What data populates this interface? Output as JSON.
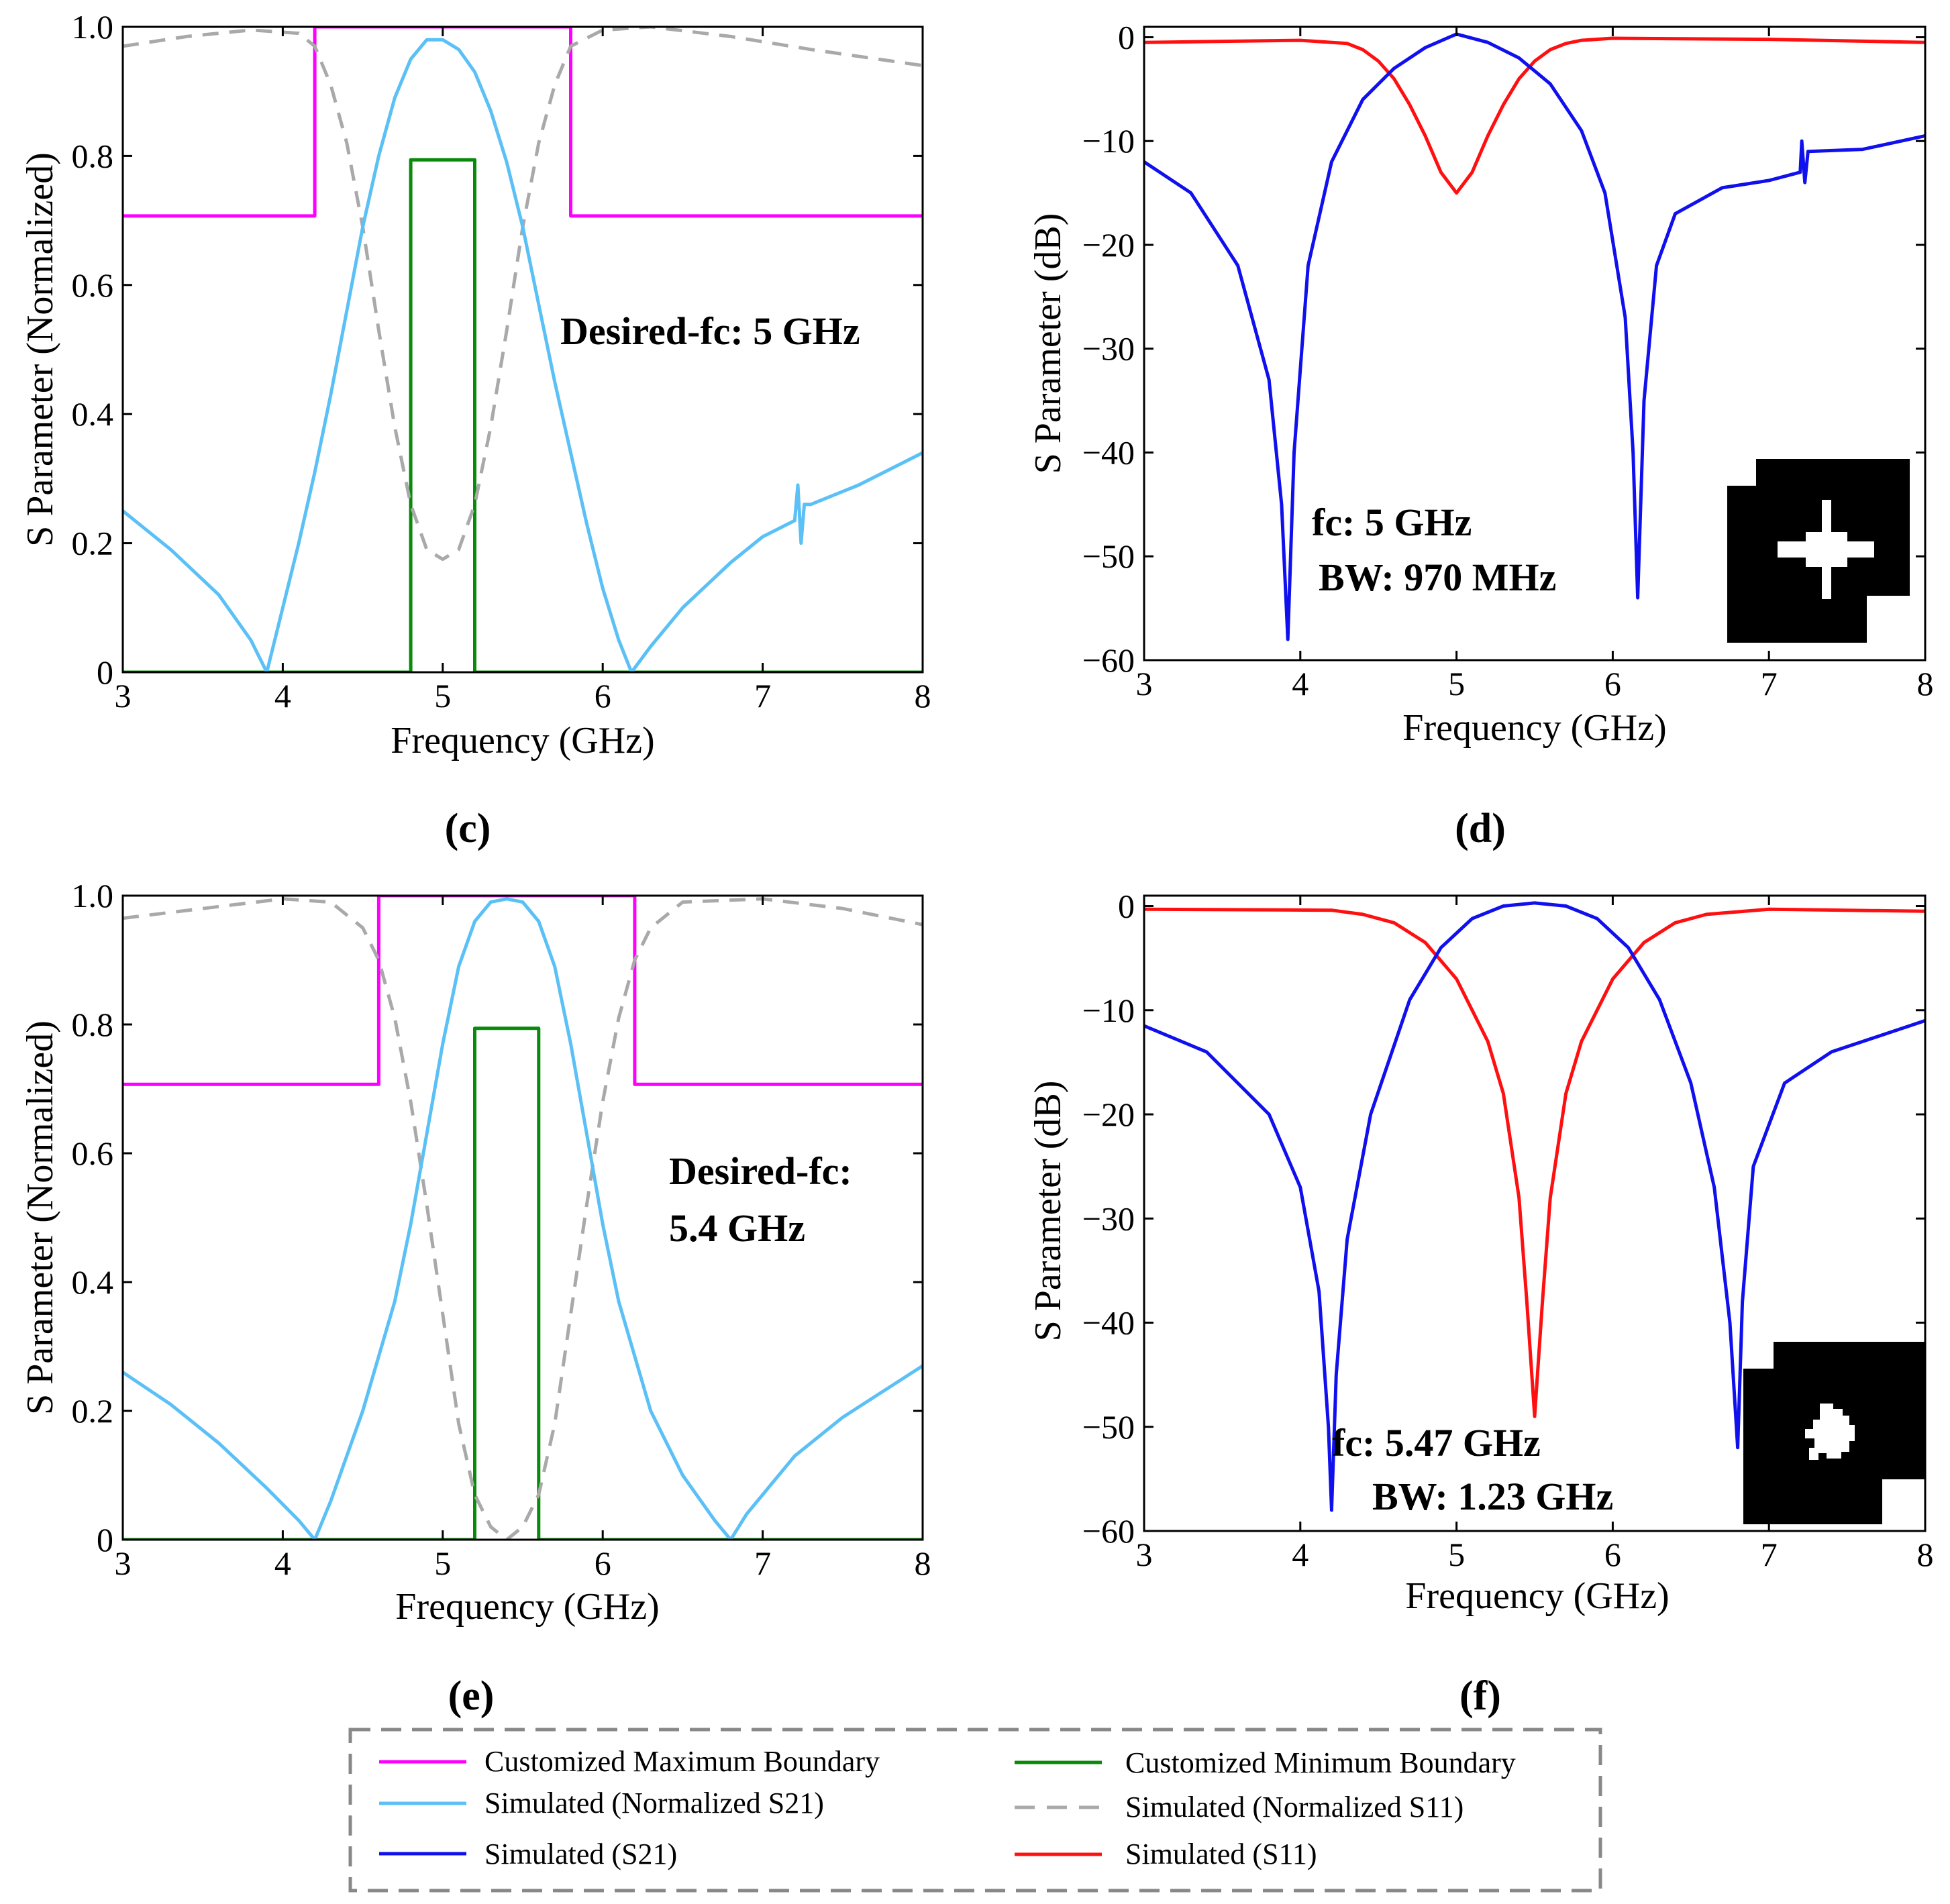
{
  "colors": {
    "max_boundary": "#ff00ff",
    "min_boundary": "#0a8a0a",
    "norm_s21": "#5bc0f5",
    "norm_s11": "#a9a9a9",
    "s21": "#1010ee",
    "s11": "#ff1010"
  },
  "legend": {
    "max_boundary": "Customized Maximum Boundary",
    "min_boundary": "Customized Minimum Boundary",
    "norm_s21": "Simulated (Normalized S21)",
    "norm_s11": "Simulated (Normalized S11)",
    "s21": "Simulated (S21)",
    "s11": "Simulated (S11)"
  },
  "chart_data": [
    {
      "panel": "(c)",
      "type": "line",
      "xlabel": "Frequency (GHz)",
      "ylabel": "S Parameter (Normalized)",
      "xlim": [
        3,
        8
      ],
      "ylim": [
        0,
        1
      ],
      "xticks": [
        3,
        4,
        5,
        6,
        7,
        8
      ],
      "yticks": [
        0,
        0.2,
        0.4,
        0.6,
        0.8,
        1.0
      ],
      "ytick_labels": [
        "0",
        "0.2",
        "0.4",
        "0.6",
        "0.8",
        "1.0"
      ],
      "annotation": [
        "Desired-fc: 5 GHz"
      ],
      "series": [
        {
          "name": "Customized Maximum Boundary",
          "key": "max_boundary",
          "style": "solid",
          "x": [
            3,
            4.2,
            4.2,
            5.8,
            5.8,
            8
          ],
          "y": [
            0.707,
            0.707,
            1.0,
            1.0,
            0.707,
            0.707
          ]
        },
        {
          "name": "Customized Minimum Boundary",
          "key": "min_boundary",
          "style": "solid",
          "x": [
            3,
            4.8,
            4.8,
            5.2,
            5.2,
            8
          ],
          "y": [
            0,
            0,
            0.794,
            0.794,
            0,
            0
          ]
        },
        {
          "name": "Simulated (Normalized S11)",
          "key": "norm_s11",
          "style": "dashed",
          "x": [
            3,
            3.4,
            3.8,
            4.1,
            4.2,
            4.3,
            4.4,
            4.5,
            4.6,
            4.7,
            4.8,
            4.9,
            5.0,
            5.1,
            5.2,
            5.3,
            5.4,
            5.5,
            5.6,
            5.7,
            5.8,
            6.0,
            6.3,
            6.8,
            7.3,
            8.0
          ],
          "y": [
            0.97,
            0.985,
            0.995,
            0.99,
            0.97,
            0.91,
            0.82,
            0.69,
            0.53,
            0.38,
            0.26,
            0.19,
            0.175,
            0.19,
            0.26,
            0.38,
            0.53,
            0.69,
            0.82,
            0.91,
            0.97,
            0.995,
            1.0,
            0.985,
            0.965,
            0.94
          ]
        },
        {
          "name": "Simulated (Normalized S21)",
          "key": "norm_s21",
          "style": "solid",
          "x": [
            3,
            3.3,
            3.6,
            3.8,
            3.9,
            4.0,
            4.1,
            4.2,
            4.3,
            4.4,
            4.5,
            4.6,
            4.7,
            4.8,
            4.9,
            5.0,
            5.1,
            5.2,
            5.3,
            5.4,
            5.5,
            5.6,
            5.7,
            5.8,
            5.9,
            6.0,
            6.1,
            6.18,
            6.3,
            6.5,
            6.8,
            7.0,
            7.2,
            7.22,
            7.24,
            7.26,
            7.3,
            7.6,
            8.0
          ],
          "y": [
            0.25,
            0.19,
            0.12,
            0.05,
            0.0,
            0.1,
            0.2,
            0.31,
            0.43,
            0.56,
            0.69,
            0.8,
            0.89,
            0.95,
            0.98,
            0.98,
            0.965,
            0.93,
            0.87,
            0.79,
            0.69,
            0.57,
            0.45,
            0.34,
            0.23,
            0.13,
            0.05,
            0.0,
            0.04,
            0.1,
            0.17,
            0.21,
            0.235,
            0.29,
            0.2,
            0.26,
            0.26,
            0.29,
            0.34
          ]
        }
      ]
    },
    {
      "panel": "(d)",
      "type": "line",
      "xlabel": "Frequency (GHz)",
      "ylabel": "S Parameter (dB)",
      "xlim": [
        3,
        8
      ],
      "ylim": [
        -60,
        1
      ],
      "xticks": [
        3,
        4,
        5,
        6,
        7,
        8
      ],
      "yticks": [
        0,
        -10,
        -20,
        -30,
        -40,
        -50,
        -60
      ],
      "ytick_labels": [
        "0",
        "−10",
        "−20",
        "−30",
        "−40",
        "−50",
        "−60"
      ],
      "annotation": [
        "fc: 5 GHz",
        "BW: 970 MHz"
      ],
      "inset": "pixel-layout-1",
      "series": [
        {
          "name": "Simulated (S11)",
          "key": "s11",
          "style": "solid",
          "x": [
            3,
            4.0,
            4.3,
            4.4,
            4.5,
            4.6,
            4.7,
            4.8,
            4.9,
            5.0,
            5.1,
            5.2,
            5.3,
            5.4,
            5.5,
            5.6,
            5.7,
            5.8,
            6.0,
            7.0,
            8.0
          ],
          "y": [
            -0.5,
            -0.3,
            -0.6,
            -1.2,
            -2.3,
            -4.0,
            -6.5,
            -9.5,
            -13.0,
            -15.0,
            -13.0,
            -9.5,
            -6.5,
            -4.0,
            -2.3,
            -1.2,
            -0.6,
            -0.3,
            -0.1,
            -0.2,
            -0.5
          ]
        },
        {
          "name": "Simulated (S21)",
          "key": "s21",
          "style": "solid",
          "x": [
            3,
            3.3,
            3.6,
            3.8,
            3.88,
            3.92,
            3.96,
            4.05,
            4.2,
            4.4,
            4.6,
            4.8,
            5.0,
            5.2,
            5.4,
            5.6,
            5.8,
            5.95,
            6.08,
            6.13,
            6.16,
            6.2,
            6.28,
            6.4,
            6.7,
            7.0,
            7.2,
            7.21,
            7.23,
            7.25,
            7.6,
            8.0
          ],
          "y": [
            -12,
            -15,
            -22,
            -33,
            -45,
            -58,
            -40,
            -22,
            -12,
            -6,
            -3,
            -1,
            0.3,
            -0.5,
            -2,
            -4.5,
            -9,
            -15,
            -27,
            -40,
            -54,
            -35,
            -22,
            -17,
            -14.5,
            -13.8,
            -13,
            -10,
            -14,
            -11,
            -10.8,
            -9.5
          ]
        }
      ]
    },
    {
      "panel": "(e)",
      "type": "line",
      "xlabel": "Frequency (GHz)",
      "ylabel": "S Parameter (Normalized)",
      "xlim": [
        3,
        8
      ],
      "ylim": [
        0,
        1
      ],
      "xticks": [
        3,
        4,
        5,
        6,
        7,
        8
      ],
      "yticks": [
        0,
        0.2,
        0.4,
        0.6,
        0.8,
        1.0
      ],
      "ytick_labels": [
        "0",
        "0.2",
        "0.4",
        "0.6",
        "0.8",
        "1.0"
      ],
      "annotation": [
        "Desired-fc:",
        "5.4 GHz"
      ],
      "series": [
        {
          "name": "Customized Maximum Boundary",
          "key": "max_boundary",
          "style": "solid",
          "x": [
            3,
            4.6,
            4.6,
            6.2,
            6.2,
            8
          ],
          "y": [
            0.707,
            0.707,
            1.0,
            1.0,
            0.707,
            0.707
          ]
        },
        {
          "name": "Customized Minimum Boundary",
          "key": "min_boundary",
          "style": "solid",
          "x": [
            3,
            5.2,
            5.2,
            5.6,
            5.6,
            8
          ],
          "y": [
            0,
            0,
            0.794,
            0.794,
            0,
            0
          ]
        },
        {
          "name": "Simulated (Normalized S11)",
          "key": "norm_s11",
          "style": "dashed",
          "x": [
            3,
            3.5,
            4.0,
            4.3,
            4.5,
            4.6,
            4.7,
            4.8,
            4.9,
            5.0,
            5.1,
            5.2,
            5.3,
            5.4,
            5.5,
            5.6,
            5.7,
            5.8,
            5.9,
            6.0,
            6.1,
            6.2,
            6.3,
            6.5,
            7.0,
            7.5,
            8.0
          ],
          "y": [
            0.965,
            0.98,
            0.995,
            0.99,
            0.95,
            0.9,
            0.81,
            0.68,
            0.52,
            0.35,
            0.18,
            0.07,
            0.02,
            0.0,
            0.02,
            0.07,
            0.18,
            0.35,
            0.52,
            0.68,
            0.81,
            0.9,
            0.95,
            0.99,
            0.995,
            0.98,
            0.955
          ]
        },
        {
          "name": "Simulated (Normalized S21)",
          "key": "norm_s21",
          "style": "solid",
          "x": [
            3,
            3.3,
            3.6,
            3.9,
            4.1,
            4.2,
            4.3,
            4.5,
            4.7,
            4.8,
            4.9,
            5.0,
            5.1,
            5.2,
            5.3,
            5.4,
            5.5,
            5.6,
            5.7,
            5.8,
            5.9,
            6.0,
            6.1,
            6.3,
            6.5,
            6.7,
            6.8,
            6.9,
            7.2,
            7.5,
            8.0
          ],
          "y": [
            0.26,
            0.21,
            0.15,
            0.08,
            0.03,
            0.0,
            0.06,
            0.2,
            0.37,
            0.49,
            0.63,
            0.77,
            0.89,
            0.96,
            0.99,
            0.995,
            0.99,
            0.96,
            0.89,
            0.77,
            0.63,
            0.49,
            0.37,
            0.2,
            0.1,
            0.03,
            0.0,
            0.04,
            0.13,
            0.19,
            0.27
          ]
        }
      ]
    },
    {
      "panel": "(f)",
      "type": "line",
      "xlabel": "Frequency (GHz)",
      "ylabel": "S Parameter (dB)",
      "xlim": [
        3,
        8
      ],
      "ylim": [
        -60,
        1
      ],
      "xticks": [
        3,
        4,
        5,
        6,
        7,
        8
      ],
      "yticks": [
        0,
        -10,
        -20,
        -30,
        -40,
        -50,
        -60
      ],
      "ytick_labels": [
        "0",
        "−10",
        "−20",
        "−30",
        "−40",
        "−50",
        "−60"
      ],
      "annotation": [
        "fc: 5.47 GHz",
        "BW: 1.23 GHz"
      ],
      "inset": "pixel-layout-2",
      "series": [
        {
          "name": "Simulated (S11)",
          "key": "s11",
          "style": "solid",
          "x": [
            3,
            4.2,
            4.4,
            4.6,
            4.8,
            5.0,
            5.2,
            5.3,
            5.4,
            5.45,
            5.5,
            5.55,
            5.6,
            5.7,
            5.8,
            6.0,
            6.2,
            6.4,
            6.6,
            7.0,
            8.0
          ],
          "y": [
            -0.3,
            -0.4,
            -0.8,
            -1.6,
            -3.5,
            -7,
            -13,
            -18,
            -28,
            -38,
            -49,
            -38,
            -28,
            -18,
            -13,
            -7,
            -3.5,
            -1.6,
            -0.8,
            -0.3,
            -0.5
          ]
        },
        {
          "name": "Simulated (S21)",
          "key": "s21",
          "style": "solid",
          "x": [
            3,
            3.4,
            3.8,
            4.0,
            4.12,
            4.18,
            4.2,
            4.23,
            4.3,
            4.45,
            4.7,
            4.9,
            5.1,
            5.3,
            5.5,
            5.7,
            5.9,
            6.1,
            6.3,
            6.5,
            6.65,
            6.75,
            6.8,
            6.83,
            6.9,
            7.1,
            7.4,
            7.7,
            8.0
          ],
          "y": [
            -11.5,
            -14,
            -20,
            -27,
            -37,
            -50,
            -58,
            -45,
            -32,
            -20,
            -9,
            -4,
            -1.2,
            0,
            0.3,
            0,
            -1.2,
            -4,
            -9,
            -17,
            -27,
            -40,
            -52,
            -38,
            -25,
            -17,
            -14,
            -12.5,
            -11
          ]
        }
      ]
    }
  ]
}
